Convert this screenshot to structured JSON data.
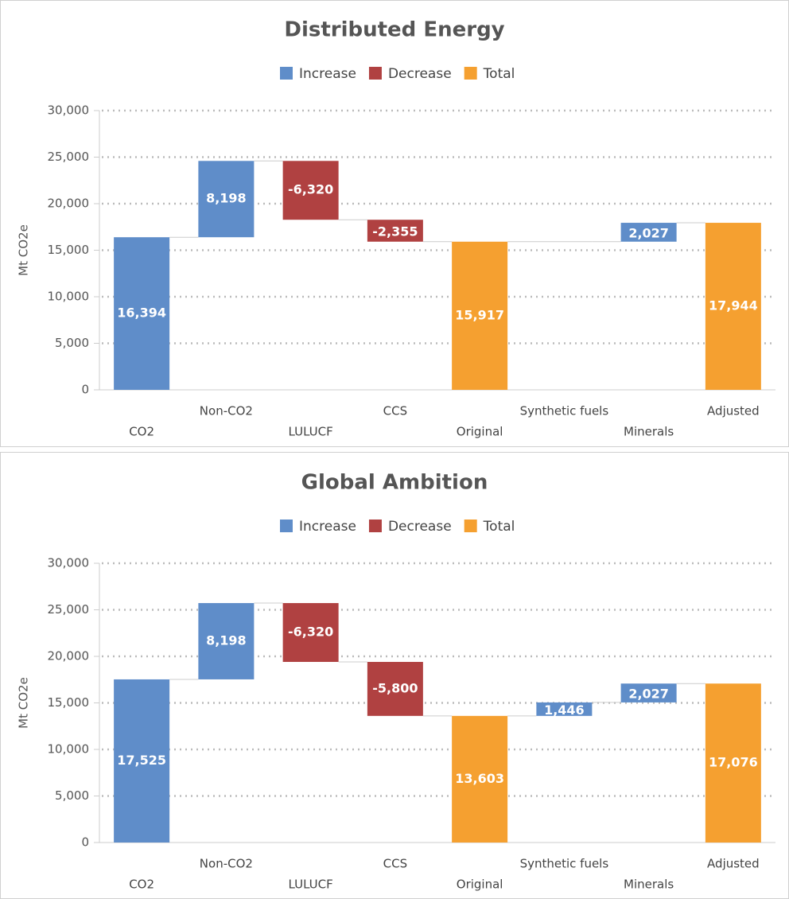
{
  "chart_data": [
    {
      "type": "waterfall",
      "title": "Distributed Energy",
      "y_label": "Mt CO2e",
      "categories": [
        "CO2",
        "Non-CO2",
        "LULUCF",
        "CCS",
        "Original",
        "Synthetic fuels",
        "Minerals",
        "Adjusted"
      ],
      "values": [
        16394,
        8198,
        -6320,
        -2355,
        15917,
        null,
        2027,
        17944
      ],
      "value_labels": [
        "16,394",
        "8,198",
        "-6,320",
        "-2,355",
        "15,917",
        null,
        "2,027",
        "17,944"
      ],
      "measure": [
        "relative",
        "relative",
        "relative",
        "relative",
        "total",
        "relative",
        "relative",
        "total"
      ],
      "legend": [
        {
          "name": "Increase",
          "color": "#5f8dc9"
        },
        {
          "name": "Decrease",
          "color": "#b04141"
        },
        {
          "name": "Total",
          "color": "#f5a030"
        }
      ],
      "ylim": [
        0,
        30000
      ],
      "yticks": [
        0,
        {
          "value": 5000,
          "label": "5,000"
        },
        {
          "value": 10000,
          "label": "10,000"
        },
        {
          "value": 15000,
          "label": "15,000"
        },
        {
          "value": 20000,
          "label": "20,000"
        },
        {
          "value": 25000,
          "label": "25,000"
        },
        {
          "value": 30000,
          "label": "30,000"
        }
      ],
      "grid": true
    },
    {
      "type": "waterfall",
      "title": "Global Ambition",
      "y_label": "Mt CO2e",
      "categories": [
        "CO2",
        "Non-CO2",
        "LULUCF",
        "CCS",
        "Original",
        "Synthetic fuels",
        "Minerals",
        "Adjusted"
      ],
      "values": [
        17525,
        8198,
        -6320,
        -5800,
        13603,
        1446,
        2027,
        17076
      ],
      "value_labels": [
        "17,525",
        "8,198",
        "-6,320",
        "-5,800",
        "13,603",
        "1,446",
        "2,027",
        "17,076"
      ],
      "measure": [
        "relative",
        "relative",
        "relative",
        "relative",
        "total",
        "relative",
        "relative",
        "total"
      ],
      "legend": [
        {
          "name": "Increase",
          "color": "#5f8dc9"
        },
        {
          "name": "Decrease",
          "color": "#b04141"
        },
        {
          "name": "Total",
          "color": "#f5a030"
        }
      ],
      "ylim": [
        0,
        30000
      ],
      "yticks": [
        0,
        {
          "value": 5000,
          "label": "5,000"
        },
        {
          "value": 10000,
          "label": "10,000"
        },
        {
          "value": 15000,
          "label": "15,000"
        },
        {
          "value": 20000,
          "label": "20,000"
        },
        {
          "value": 25000,
          "label": "25,000"
        },
        {
          "value": 30000,
          "label": "30,000"
        }
      ],
      "grid": true
    }
  ]
}
